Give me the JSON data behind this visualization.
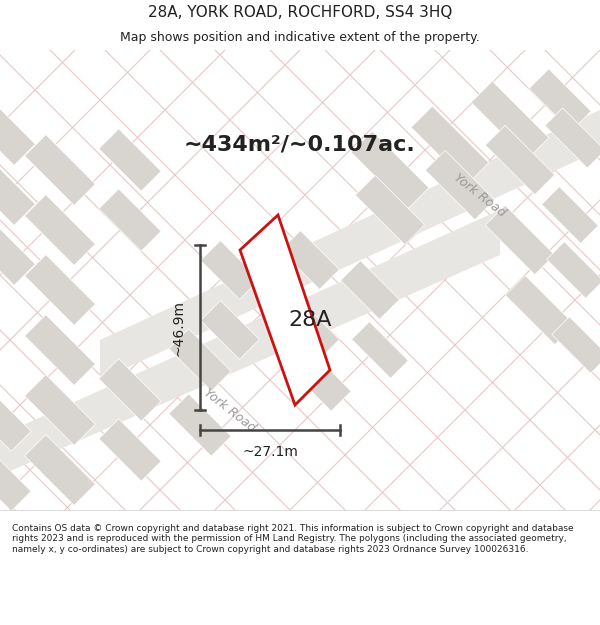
{
  "title_line1": "28A, YORK ROAD, ROCHFORD, SS4 3HQ",
  "title_line2": "Map shows position and indicative extent of the property.",
  "area_text": "~434m²/~0.107ac.",
  "label_28A": "28A",
  "dim_height": "~46.9m",
  "dim_width": "~27.1m",
  "york_road_labels": [
    "York Road",
    "York Road"
  ],
  "footer_text": "Contains OS data © Crown copyright and database right 2021. This information is subject to Crown copyright and database rights 2023 and is reproduced with the permission of HM Land Registry. The polygons (including the associated geometry, namely x, y co-ordinates) are subject to Crown copyright and database rights 2023 Ordnance Survey 100026316.",
  "bg_color": "#f5f4f2",
  "map_bg": "#f0eeeb",
  "block_color": "#d8d5d0",
  "road_color": "#e8c8c8",
  "property_color": "#cc1111",
  "text_color": "#222222",
  "dim_line_color": "#444444",
  "york_road_color": "#999999",
  "header_bg": "#ffffff",
  "footer_bg": "#ffffff"
}
